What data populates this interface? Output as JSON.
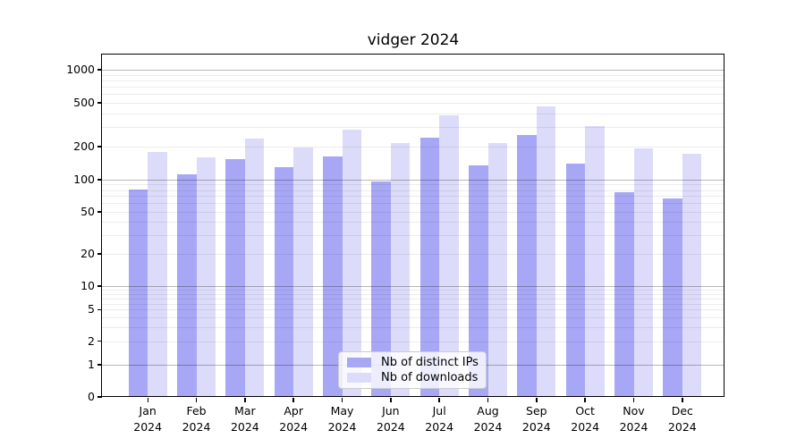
{
  "chart_data": {
    "type": "bar",
    "title": "vidger 2024",
    "categories": [
      "Jan",
      "Feb",
      "Mar",
      "Apr",
      "May",
      "Jun",
      "Jul",
      "Aug",
      "Sep",
      "Oct",
      "Nov",
      "Dec"
    ],
    "x_year_label": "2024",
    "series": [
      {
        "name": "Nb of distinct IPs",
        "color": "#a7a7f6",
        "values": [
          81,
          111,
          155,
          131,
          162,
          97,
          241,
          136,
          256,
          140,
          76,
          66
        ]
      },
      {
        "name": "Nb of downloads",
        "color": "#dcdcfa",
        "values": [
          178,
          160,
          236,
          196,
          287,
          215,
          386,
          215,
          460,
          306,
          193,
          173
        ]
      }
    ],
    "y_axis": {
      "scale": "symlog",
      "tick_labels": [
        0,
        1,
        2,
        5,
        10,
        20,
        50,
        100,
        200,
        500,
        1000
      ],
      "major_gridlines": [
        1,
        10,
        100,
        1000
      ],
      "ylim": [
        0,
        1400
      ]
    },
    "legend": {
      "position": "lower center"
    },
    "grid": {
      "major_color": "#b6b6b6",
      "minor_color": "#ebebeb",
      "minor": "values 2-9 of each decade"
    },
    "colors": {
      "axis": "#000000",
      "background": "#ffffff",
      "text": "#000000"
    }
  }
}
